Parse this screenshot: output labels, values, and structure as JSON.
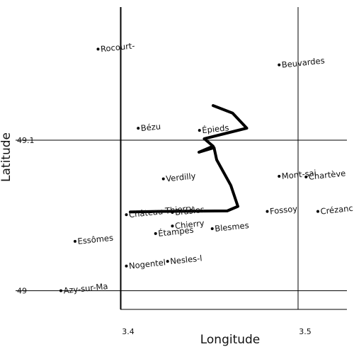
{
  "map": {
    "xlabel": "Longitude",
    "ylabel": "Latitude",
    "x_ticks": [
      {
        "value": 3.4,
        "label": "3.4"
      },
      {
        "value": 3.5,
        "label": "3.5"
      }
    ],
    "y_ticks": [
      {
        "value": 49.1,
        "label": "49.1"
      },
      {
        "value": 49.0,
        "label": "49"
      }
    ],
    "xlim": [
      3.3996,
      3.5276
    ],
    "ylim": [
      48.9876,
      49.1884
    ],
    "route": {
      "color": "#000000",
      "points": [
        [
          3.4052,
          49.0523
        ],
        [
          3.42,
          49.0527
        ],
        [
          3.46,
          49.053
        ],
        [
          3.466,
          49.056
        ],
        [
          3.462,
          49.07
        ],
        [
          3.454,
          49.087
        ],
        [
          3.4525,
          49.095
        ],
        [
          3.444,
          49.092
        ],
        [
          3.452,
          49.096
        ],
        [
          3.447,
          49.101
        ],
        [
          3.471,
          49.108
        ],
        [
          3.463,
          49.118
        ],
        [
          3.452,
          49.123
        ]
      ]
    },
    "places": [
      {
        "name": "Rocourt-",
        "lon": 3.387,
        "lat": 49.1605
      },
      {
        "name": "Beuvardes",
        "lon": 3.4893,
        "lat": 49.15
      },
      {
        "name": "Bézu",
        "lon": 3.4097,
        "lat": 49.1079
      },
      {
        "name": "Épieds",
        "lon": 3.4443,
        "lat": 49.1065
      },
      {
        "name": "Verdilly",
        "lon": 3.4239,
        "lat": 49.0743
      },
      {
        "name": "Mont-sai",
        "lon": 3.4893,
        "lat": 49.076
      },
      {
        "name": "Chartève",
        "lon": 3.5045,
        "lat": 49.0756
      },
      {
        "name": "Fossoy",
        "lon": 3.4826,
        "lat": 49.0527
      },
      {
        "name": "Crézanc",
        "lon": 3.5112,
        "lat": 49.0527
      },
      {
        "name": "Château-Thierry",
        "lon": 3.403,
        "lat": 49.0505
      },
      {
        "name": "Brasles",
        "lon": 3.429,
        "lat": 49.052
      },
      {
        "name": "Chierry",
        "lon": 3.429,
        "lat": 49.043
      },
      {
        "name": "Étampes",
        "lon": 3.4195,
        "lat": 49.038
      },
      {
        "name": "Blesmes",
        "lon": 3.4515,
        "lat": 49.0412
      },
      {
        "name": "Essômes",
        "lon": 3.374,
        "lat": 49.0328
      },
      {
        "name": "Nogentel",
        "lon": 3.403,
        "lat": 49.0164
      },
      {
        "name": "Nesles-l",
        "lon": 3.4263,
        "lat": 49.0195
      },
      {
        "name": "Azy-sur-Ma",
        "lon": 3.366,
        "lat": 49.0
      }
    ]
  }
}
